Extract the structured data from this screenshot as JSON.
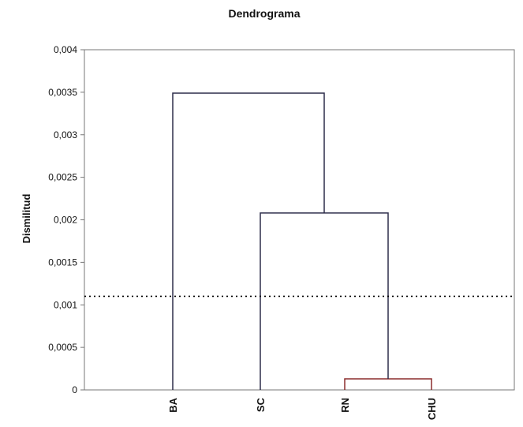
{
  "chart_data": {
    "type": "dendrogram",
    "title": "Dendrograma",
    "xlabel": "",
    "ylabel": "Dismilitud",
    "ylim": [
      0,
      0.004
    ],
    "yticks": [
      0,
      0.0005,
      0.001,
      0.0015,
      0.002,
      0.0025,
      0.003,
      0.0035,
      0.004
    ],
    "ytick_labels": [
      "0",
      "0,0005",
      "0,001",
      "0,0015",
      "0,002",
      "0,0025",
      "0,003",
      "0,0035",
      "0,004"
    ],
    "leaves": [
      "BA",
      "SC",
      "RN",
      "CHU"
    ],
    "merges": [
      {
        "left": "RN",
        "right": "CHU",
        "height": 0.00013,
        "color": "#8b2d2d"
      },
      {
        "left": "SC",
        "right": "RN+CHU",
        "height": 0.00208,
        "color": "#2d2d4a"
      },
      {
        "left": "BA",
        "right": "SC+RN+CHU",
        "height": 0.00349,
        "color": "#2d2d4a"
      }
    ],
    "cut_line": {
      "value": 0.0011,
      "style": "dotted"
    },
    "grid": false
  }
}
